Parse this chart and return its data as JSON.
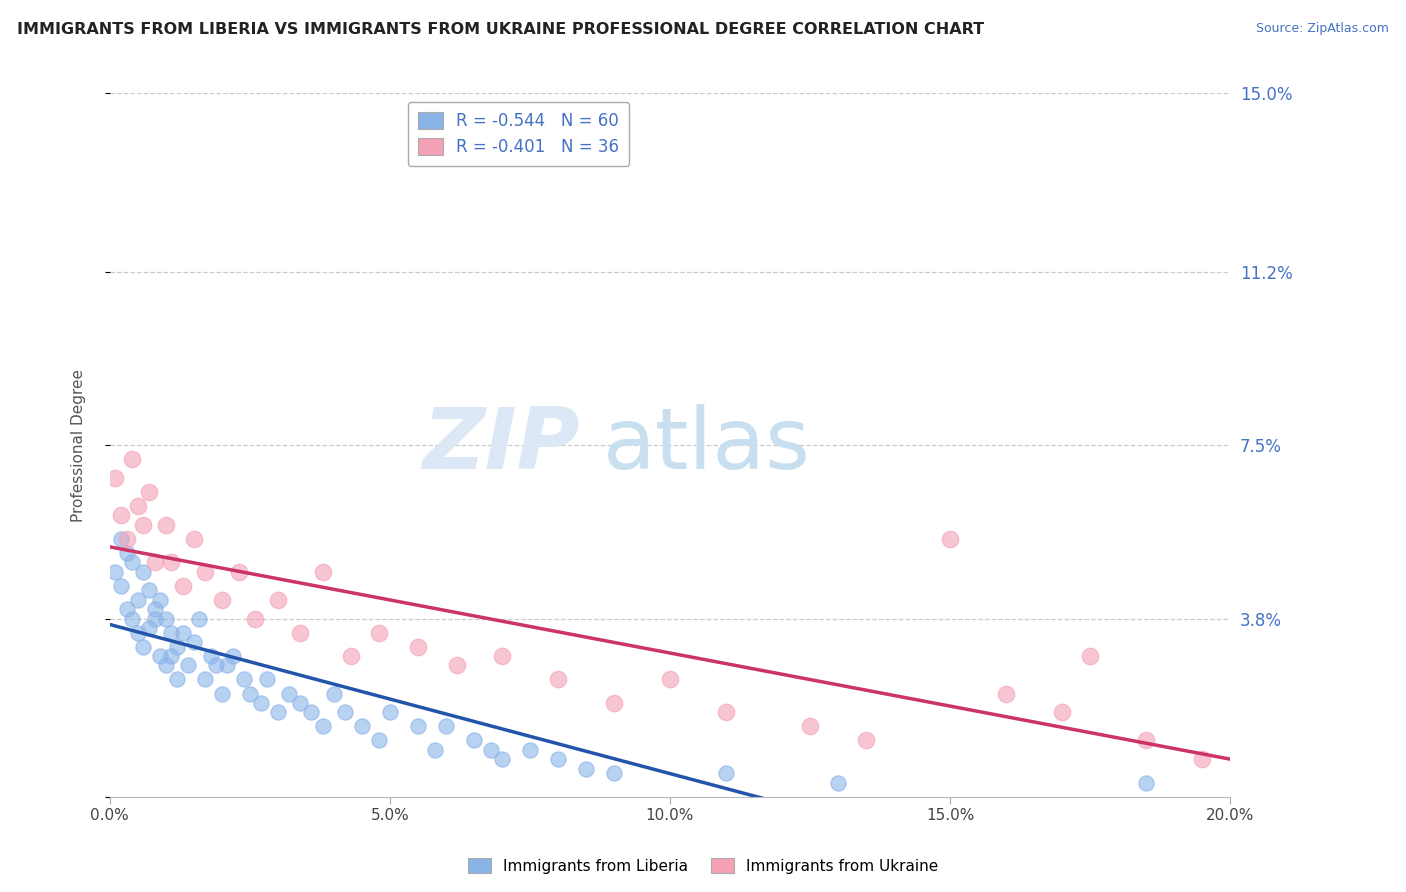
{
  "title": "IMMIGRANTS FROM LIBERIA VS IMMIGRANTS FROM UKRAINE PROFESSIONAL DEGREE CORRELATION CHART",
  "source": "Source: ZipAtlas.com",
  "ylabel": "Professional Degree",
  "x_min": 0.0,
  "x_max": 0.2,
  "y_min": 0.0,
  "y_max": 0.15,
  "y_ticks": [
    0.0,
    0.038,
    0.075,
    0.112,
    0.15
  ],
  "y_tick_labels": [
    "",
    "3.8%",
    "7.5%",
    "11.2%",
    "15.0%"
  ],
  "x_ticks": [
    0.0,
    0.05,
    0.1,
    0.15,
    0.2
  ],
  "x_tick_labels": [
    "0.0%",
    "5.0%",
    "10.0%",
    "15.0%",
    "20.0%"
  ],
  "legend_label1": "Immigrants from Liberia",
  "legend_label2": "Immigrants from Ukraine",
  "R1": -0.544,
  "N1": 60,
  "R2": -0.401,
  "N2": 36,
  "color1": "#8ab4e8",
  "color2": "#f4a0b5",
  "line_color1": "#2255aa",
  "line_color2": "#cc3366",
  "liberia_x": [
    0.001,
    0.002,
    0.002,
    0.003,
    0.003,
    0.004,
    0.004,
    0.005,
    0.005,
    0.006,
    0.006,
    0.007,
    0.007,
    0.008,
    0.008,
    0.009,
    0.009,
    0.01,
    0.01,
    0.011,
    0.011,
    0.012,
    0.012,
    0.013,
    0.014,
    0.015,
    0.016,
    0.017,
    0.018,
    0.019,
    0.02,
    0.021,
    0.022,
    0.024,
    0.025,
    0.027,
    0.028,
    0.03,
    0.032,
    0.034,
    0.036,
    0.038,
    0.04,
    0.042,
    0.045,
    0.048,
    0.05,
    0.055,
    0.058,
    0.06,
    0.065,
    0.068,
    0.07,
    0.075,
    0.08,
    0.085,
    0.09,
    0.11,
    0.13,
    0.185
  ],
  "liberia_y": [
    0.048,
    0.045,
    0.055,
    0.04,
    0.052,
    0.038,
    0.05,
    0.035,
    0.042,
    0.048,
    0.032,
    0.044,
    0.036,
    0.038,
    0.04,
    0.03,
    0.042,
    0.028,
    0.038,
    0.035,
    0.03,
    0.032,
    0.025,
    0.035,
    0.028,
    0.033,
    0.038,
    0.025,
    0.03,
    0.028,
    0.022,
    0.028,
    0.03,
    0.025,
    0.022,
    0.02,
    0.025,
    0.018,
    0.022,
    0.02,
    0.018,
    0.015,
    0.022,
    0.018,
    0.015,
    0.012,
    0.018,
    0.015,
    0.01,
    0.015,
    0.012,
    0.01,
    0.008,
    0.01,
    0.008,
    0.006,
    0.005,
    0.005,
    0.003,
    0.003
  ],
  "ukraine_x": [
    0.001,
    0.002,
    0.003,
    0.004,
    0.005,
    0.006,
    0.007,
    0.008,
    0.01,
    0.011,
    0.013,
    0.015,
    0.017,
    0.02,
    0.023,
    0.026,
    0.03,
    0.034,
    0.038,
    0.043,
    0.048,
    0.055,
    0.062,
    0.07,
    0.08,
    0.09,
    0.1,
    0.11,
    0.125,
    0.135,
    0.15,
    0.16,
    0.17,
    0.175,
    0.185,
    0.195
  ],
  "ukraine_y": [
    0.068,
    0.06,
    0.055,
    0.072,
    0.062,
    0.058,
    0.065,
    0.05,
    0.058,
    0.05,
    0.045,
    0.055,
    0.048,
    0.042,
    0.048,
    0.038,
    0.042,
    0.035,
    0.048,
    0.03,
    0.035,
    0.032,
    0.028,
    0.03,
    0.025,
    0.02,
    0.025,
    0.018,
    0.015,
    0.012,
    0.055,
    0.022,
    0.018,
    0.03,
    0.012,
    0.008
  ]
}
